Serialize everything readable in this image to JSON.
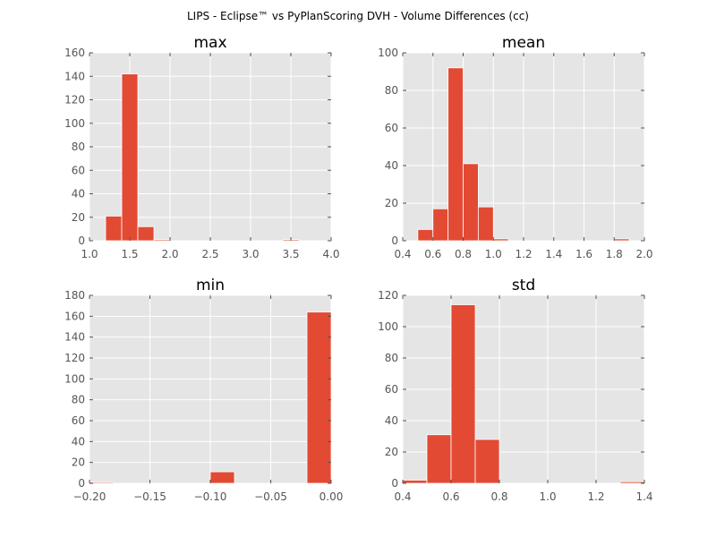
{
  "title": "LIPS - Eclipse™ vs PyPlanScoring DVH - Volume Differences (cc)",
  "colors": {
    "bar": "#e24a33",
    "axes_bg": "#e5e5e5",
    "grid": "#ffffff",
    "tick": "#555555"
  },
  "chart_data": [
    {
      "type": "bar",
      "title": "max",
      "bin_width": 0.2,
      "bars": [
        {
          "x": 1.2,
          "value": 21
        },
        {
          "x": 1.4,
          "value": 142
        },
        {
          "x": 1.6,
          "value": 12
        },
        {
          "x": 1.8,
          "value": 1
        },
        {
          "x": 2.0,
          "value": 0
        },
        {
          "x": 2.2,
          "value": 0
        },
        {
          "x": 2.4,
          "value": 0
        },
        {
          "x": 2.6,
          "value": 0
        },
        {
          "x": 2.8,
          "value": 0
        },
        {
          "x": 3.0,
          "value": 0
        },
        {
          "x": 3.2,
          "value": 0
        },
        {
          "x": 3.4,
          "value": 1
        }
      ],
      "xlim": [
        1.0,
        4.0
      ],
      "ylim": [
        0,
        160
      ],
      "xticks": [
        "1.0",
        "1.5",
        "2.0",
        "2.5",
        "3.0",
        "3.5",
        "4.0"
      ],
      "yticks": [
        "0",
        "20",
        "40",
        "60",
        "80",
        "100",
        "120",
        "140",
        "160"
      ],
      "grid": true
    },
    {
      "type": "bar",
      "title": "mean",
      "bin_width": 0.1,
      "bars": [
        {
          "x": 0.5,
          "value": 6
        },
        {
          "x": 0.6,
          "value": 17
        },
        {
          "x": 0.7,
          "value": 92
        },
        {
          "x": 0.8,
          "value": 41
        },
        {
          "x": 0.9,
          "value": 18
        },
        {
          "x": 1.0,
          "value": 1
        },
        {
          "x": 1.1,
          "value": 0
        },
        {
          "x": 1.2,
          "value": 0
        },
        {
          "x": 1.3,
          "value": 0
        },
        {
          "x": 1.4,
          "value": 0
        },
        {
          "x": 1.5,
          "value": 0
        },
        {
          "x": 1.6,
          "value": 0
        },
        {
          "x": 1.7,
          "value": 0
        },
        {
          "x": 1.8,
          "value": 1
        }
      ],
      "xlim": [
        0.4,
        2.0
      ],
      "ylim": [
        0,
        100
      ],
      "xticks": [
        "0.4",
        "0.6",
        "0.8",
        "1.0",
        "1.2",
        "1.4",
        "1.6",
        "1.8",
        "2.0"
      ],
      "yticks": [
        "0",
        "20",
        "40",
        "60",
        "80",
        "100"
      ],
      "grid": true
    },
    {
      "type": "bar",
      "title": "min",
      "bin_width": 0.02,
      "bars": [
        {
          "x": -0.2,
          "value": 1
        },
        {
          "x": -0.1,
          "value": 11
        },
        {
          "x": -0.02,
          "value": 164
        }
      ],
      "xlim": [
        -0.2,
        0.0
      ],
      "ylim": [
        0,
        180
      ],
      "xticks": [
        "−0.20",
        "−0.15",
        "−0.10",
        "−0.05",
        "0.00"
      ],
      "yticks": [
        "0",
        "20",
        "40",
        "60",
        "80",
        "100",
        "120",
        "140",
        "160",
        "180"
      ],
      "grid": true
    },
    {
      "type": "bar",
      "title": "std",
      "bin_width": 0.1,
      "bars": [
        {
          "x": 0.4,
          "value": 2
        },
        {
          "x": 0.5,
          "value": 31
        },
        {
          "x": 0.6,
          "value": 114
        },
        {
          "x": 0.7,
          "value": 28
        },
        {
          "x": 0.8,
          "value": 0
        },
        {
          "x": 0.9,
          "value": 0
        },
        {
          "x": 1.0,
          "value": 0
        },
        {
          "x": 1.1,
          "value": 0
        },
        {
          "x": 1.2,
          "value": 0
        },
        {
          "x": 1.3,
          "value": 1
        }
      ],
      "xlim": [
        0.4,
        1.4
      ],
      "ylim": [
        0,
        120
      ],
      "xticks": [
        "0.4",
        "0.6",
        "0.8",
        "1.0",
        "1.2",
        "1.4"
      ],
      "yticks": [
        "0",
        "20",
        "40",
        "60",
        "80",
        "100",
        "120"
      ],
      "grid": true
    }
  ]
}
